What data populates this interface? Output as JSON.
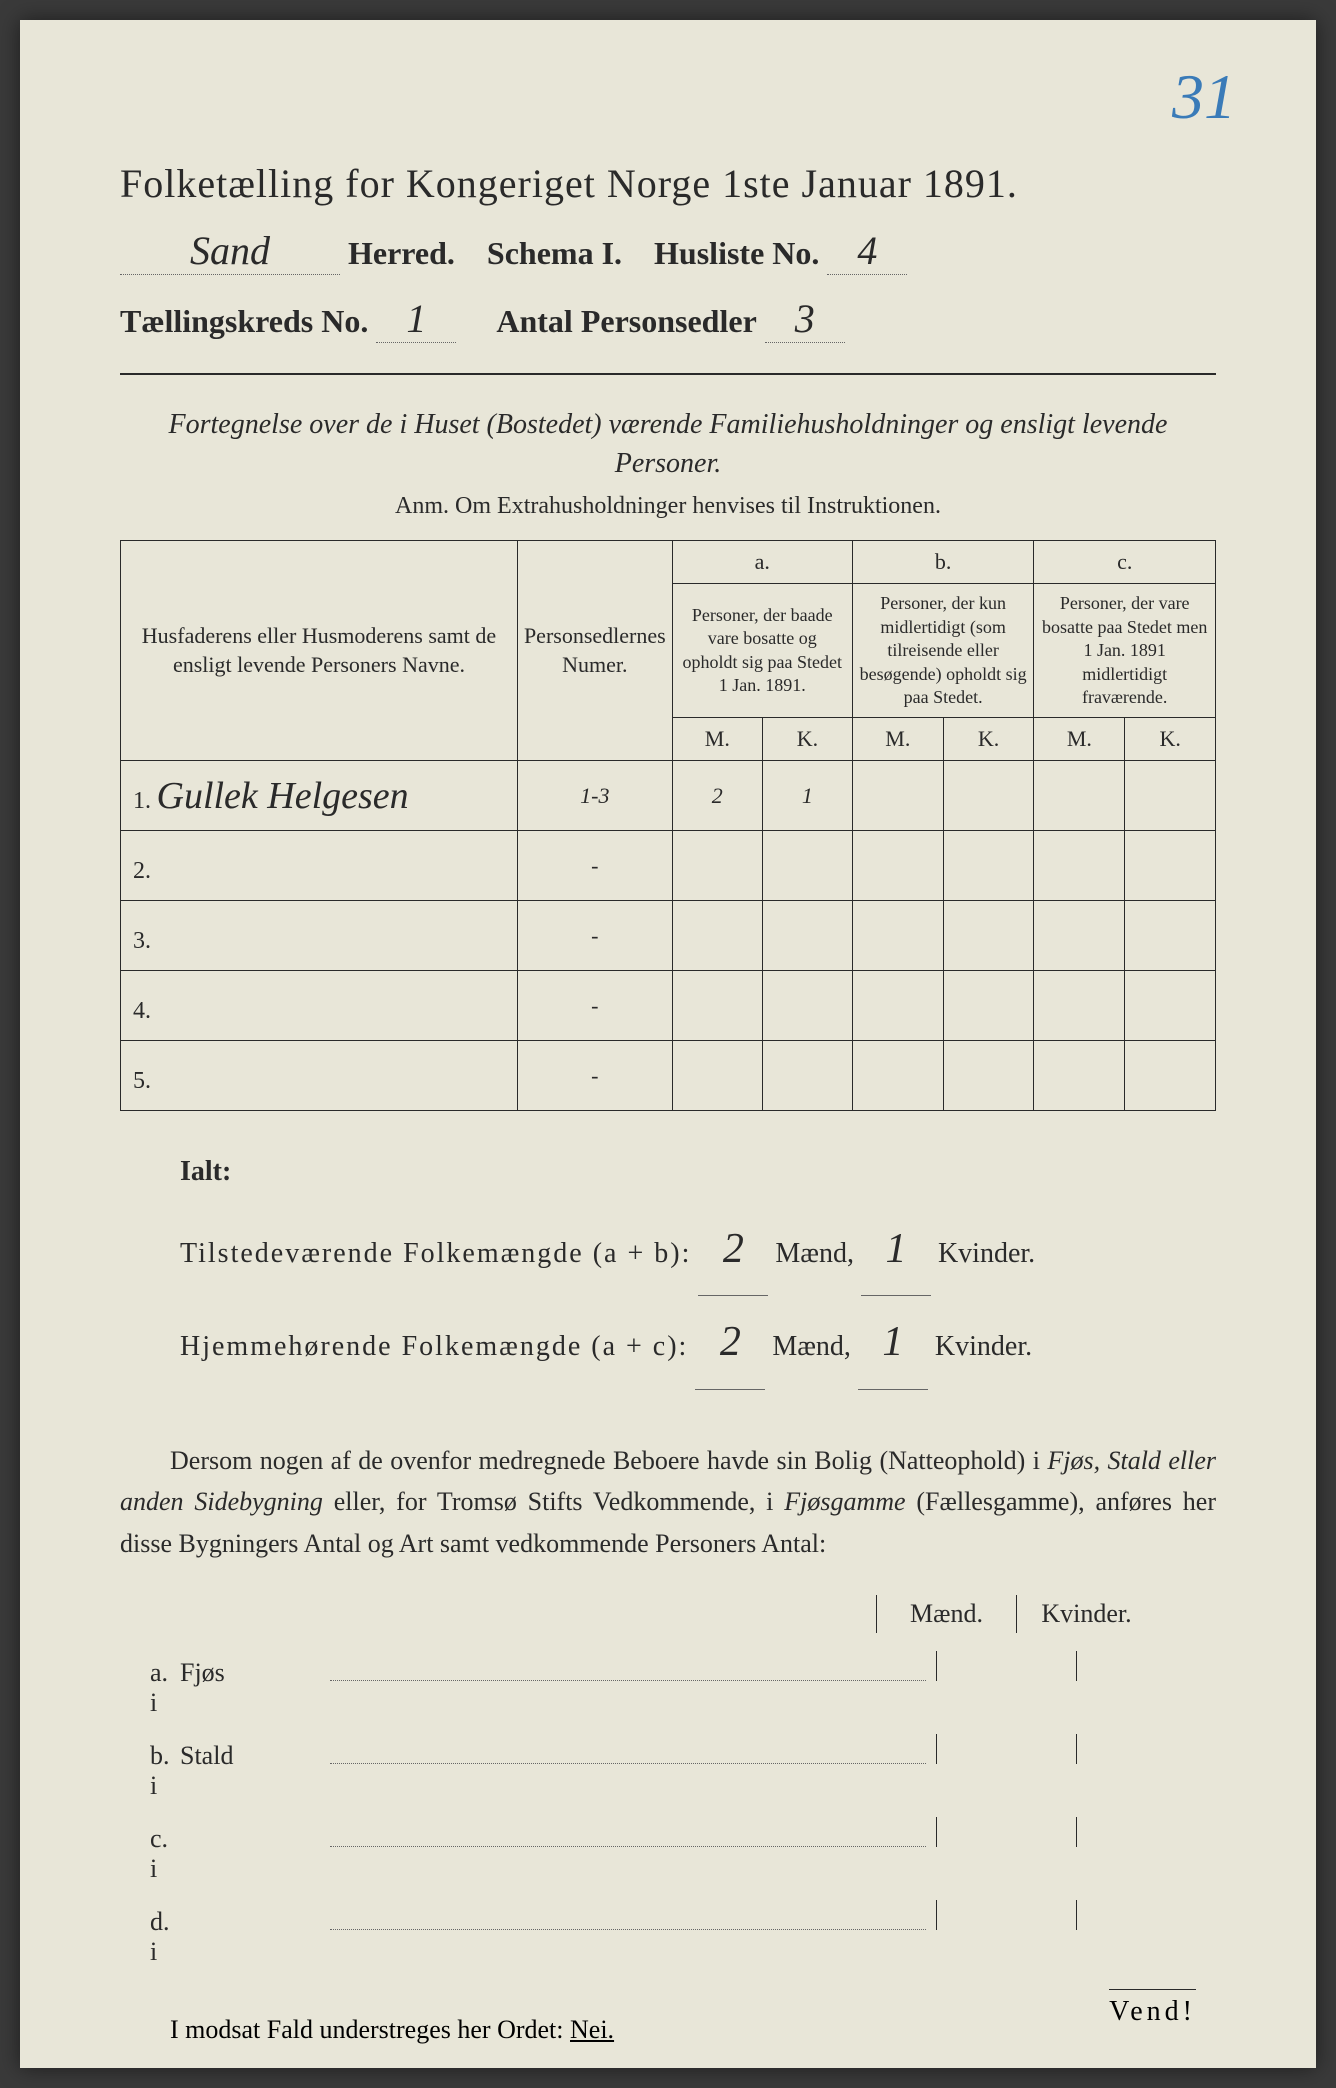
{
  "page": {
    "background_color": "#e8e6d8",
    "text_color": "#2a2a2a",
    "corner_number": "31",
    "corner_color": "#3a7bb8"
  },
  "header": {
    "title": "Folketælling for Kongeriget Norge 1ste Januar 1891.",
    "herred_value": "Sand",
    "herred_label": "Herred.",
    "schema_label": "Schema I.",
    "husliste_label": "Husliste No.",
    "husliste_value": "4",
    "kreds_label": "Tællingskreds No.",
    "kreds_value": "1",
    "antal_label": "Antal Personsedler",
    "antal_value": "3"
  },
  "subtitle": {
    "line": "Fortegnelse over de i Huset (Bostedet) værende Familiehusholdninger og ensligt levende Personer.",
    "anm": "Anm.  Om Extrahusholdninger henvises til Instruktionen."
  },
  "table": {
    "headers": {
      "col1": "Husfaderens eller Husmoderens samt de ensligt levende Personers Navne.",
      "col2": "Personsedlernes Numer.",
      "col3_top": "a.",
      "col3": "Personer, der baade vare bosatte og opholdt sig paa Stedet 1 Jan. 1891.",
      "col4_top": "b.",
      "col4": "Personer, der kun midlertidigt (som tilreisende eller besøgende) opholdt sig paa Stedet.",
      "col5_top": "c.",
      "col5": "Personer, der vare bosatte paa Stedet men 1 Jan. 1891 midlertidigt fraværende.",
      "mk_m": "M.",
      "mk_k": "K."
    },
    "rows": [
      {
        "num": "1.",
        "name": "Gullek Helgesen",
        "personsedler": "1-3",
        "a_m": "2",
        "a_k": "1",
        "b_m": "",
        "b_k": "",
        "c_m": "",
        "c_k": ""
      },
      {
        "num": "2.",
        "name": "",
        "personsedler": "-",
        "a_m": "",
        "a_k": "",
        "b_m": "",
        "b_k": "",
        "c_m": "",
        "c_k": ""
      },
      {
        "num": "3.",
        "name": "",
        "personsedler": "-",
        "a_m": "",
        "a_k": "",
        "b_m": "",
        "b_k": "",
        "c_m": "",
        "c_k": ""
      },
      {
        "num": "4.",
        "name": "",
        "personsedler": "-",
        "a_m": "",
        "a_k": "",
        "b_m": "",
        "b_k": "",
        "c_m": "",
        "c_k": ""
      },
      {
        "num": "5.",
        "name": "",
        "personsedler": "-",
        "a_m": "",
        "a_k": "",
        "b_m": "",
        "b_k": "",
        "c_m": "",
        "c_k": ""
      }
    ]
  },
  "totals": {
    "ialt_label": "Ialt:",
    "line1_label": "Tilstedeværende Folkemængde (a + b):",
    "line1_m": "2",
    "line1_k": "1",
    "line2_label": "Hjemmehørende Folkemængde (a + c):",
    "line2_m": "2",
    "line2_k": "1",
    "maend": "Mænd,",
    "kvinder": "Kvinder."
  },
  "paragraph": {
    "text": "Dersom nogen af de ovenfor medregnede Beboere havde sin Bolig (Natteophold) i Fjøs, Stald eller anden Sidebygning eller, for Tromsø Stifts Vedkommende, i Fjøsgamme (Fællesgamme), anføres her disse Bygningers Antal og Art samt vedkommende Personers Antal:"
  },
  "buildings": {
    "header_m": "Mænd.",
    "header_k": "Kvinder.",
    "rows": [
      {
        "key": "a.  i",
        "name": "Fjøs"
      },
      {
        "key": "b.  i",
        "name": "Stald"
      },
      {
        "key": "c.  i",
        "name": ""
      },
      {
        "key": "d.  i",
        "name": ""
      }
    ]
  },
  "footer": {
    "nei_line_pre": "I modsat Fald understreges her Ordet: ",
    "nei": "Nei.",
    "vend": "Vend!"
  }
}
